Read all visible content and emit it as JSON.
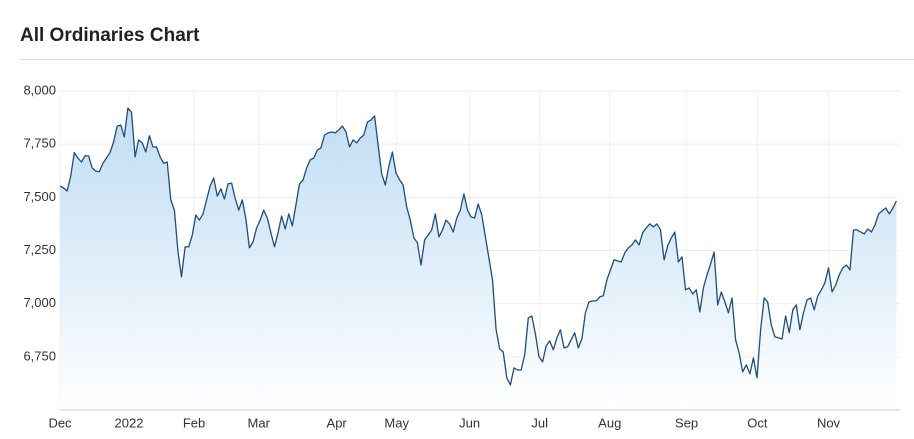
{
  "chart_data": {
    "type": "area",
    "title": "All Ordinaries Chart",
    "values": [
      7553,
      7544,
      7530,
      7600,
      7710,
      7685,
      7666,
      7695,
      7695,
      7638,
      7624,
      7620,
      7660,
      7685,
      7710,
      7760,
      7835,
      7840,
      7784,
      7920,
      7900,
      7690,
      7770,
      7756,
      7713,
      7790,
      7737,
      7737,
      7690,
      7660,
      7666,
      7488,
      7440,
      7243,
      7126,
      7267,
      7267,
      7323,
      7417,
      7393,
      7422,
      7488,
      7553,
      7591,
      7506,
      7540,
      7492,
      7563,
      7567,
      7497,
      7440,
      7488,
      7398,
      7262,
      7290,
      7356,
      7393,
      7440,
      7403,
      7333,
      7267,
      7333,
      7412,
      7351,
      7422,
      7365,
      7464,
      7563,
      7582,
      7638,
      7676,
      7685,
      7723,
      7732,
      7793,
      7803,
      7807,
      7803,
      7817,
      7835,
      7807,
      7737,
      7770,
      7756,
      7779,
      7793,
      7854,
      7864,
      7883,
      7746,
      7610,
      7558,
      7648,
      7713,
      7615,
      7582,
      7558,
      7455,
      7393,
      7309,
      7286,
      7182,
      7300,
      7323,
      7347,
      7422,
      7314,
      7347,
      7393,
      7375,
      7337,
      7403,
      7440,
      7516,
      7440,
      7408,
      7403,
      7469,
      7417,
      7314,
      7215,
      7112,
      6877,
      6787,
      6773,
      6651,
      6618,
      6698,
      6688,
      6688,
      6759,
      6933,
      6942,
      6858,
      6750,
      6726,
      6801,
      6825,
      6783,
      6839,
      6877,
      6792,
      6797,
      6830,
      6863,
      6792,
      6834,
      6957,
      7008,
      7013,
      7013,
      7032,
      7037,
      7112,
      7159,
      7206,
      7201,
      7196,
      7239,
      7262,
      7276,
      7300,
      7276,
      7333,
      7356,
      7375,
      7361,
      7375,
      7347,
      7206,
      7272,
      7309,
      7337,
      7196,
      7220,
      7065,
      7074,
      7046,
      7065,
      6961,
      7074,
      7135,
      7187,
      7243,
      6994,
      7055,
      7008,
      6957,
      7027,
      6830,
      6769,
      6679,
      6712,
      6670,
      6745,
      6651,
      6877,
      7027,
      7008,
      6900,
      6844,
      6839,
      6834,
      6942,
      6863,
      6971,
      6994,
      6877,
      6957,
      7018,
      7027,
      6971,
      7037,
      7065,
      7098,
      7168,
      7055,
      7088,
      7135,
      7168,
      7182,
      7159,
      7347,
      7347,
      7337,
      7328,
      7351,
      7337,
      7370,
      7422,
      7436,
      7450,
      7422,
      7450,
      7483
    ],
    "color": "#1f4e79",
    "fill_color": "#b5d7f2",
    "xlim": [
      0,
      235
    ],
    "xticks": [
      {
        "value": 0,
        "label": "Dec"
      },
      {
        "value": 19.3,
        "label": "2022"
      },
      {
        "value": 37.5,
        "label": "Feb"
      },
      {
        "value": 55.6,
        "label": "Mar"
      },
      {
        "value": 77.4,
        "label": "Apr"
      },
      {
        "value": 94.2,
        "label": "May"
      },
      {
        "value": 114.6,
        "label": "Jun"
      },
      {
        "value": 134.2,
        "label": "Jul"
      },
      {
        "value": 153.8,
        "label": "Aug"
      },
      {
        "value": 175.3,
        "label": "Sep"
      },
      {
        "value": 195.1,
        "label": "Oct"
      },
      {
        "value": 215.0,
        "label": "Nov"
      }
    ],
    "ylim": [
      6500,
      8000
    ],
    "yticks": [
      {
        "value": 6750,
        "label": "6,750"
      },
      {
        "value": 7000,
        "label": "7,000"
      },
      {
        "value": 7250,
        "label": "7,250"
      },
      {
        "value": 7500,
        "label": "7,500"
      },
      {
        "value": 7750,
        "label": "7,750"
      },
      {
        "value": 8000,
        "label": "8,000"
      }
    ],
    "grid": true
  }
}
